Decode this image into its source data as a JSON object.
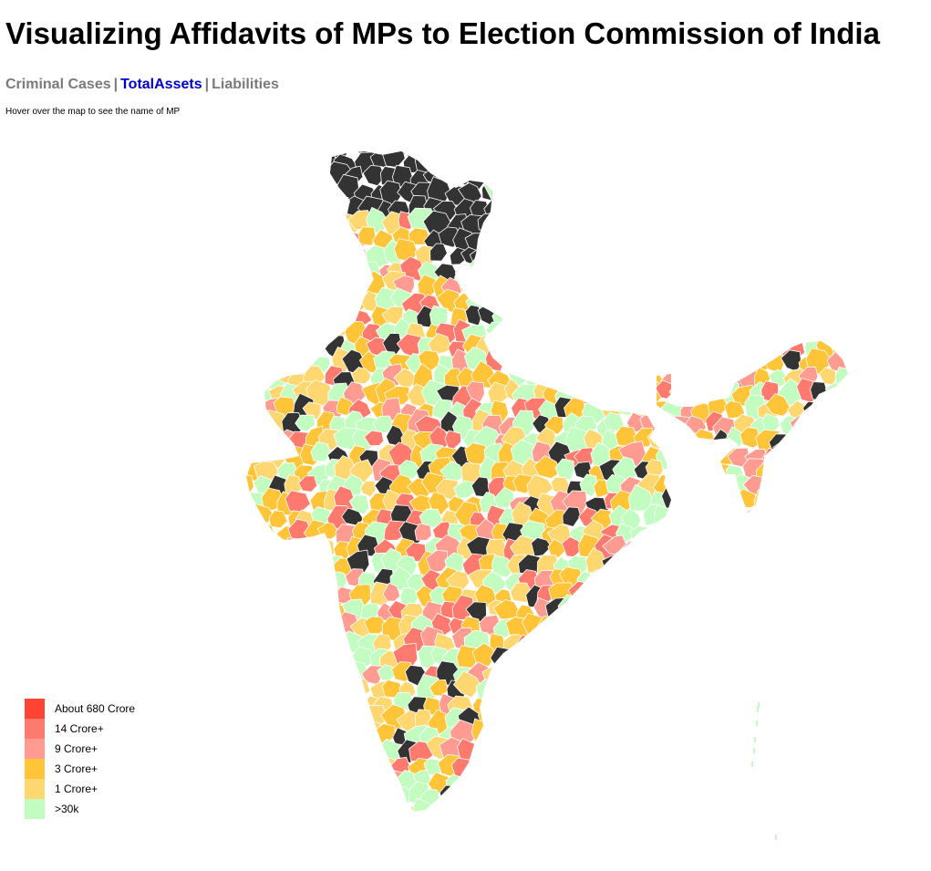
{
  "page": {
    "title": "Visualizing Affidavits of MPs to Election Commission of India",
    "hint": "Hover over the map to see the name of MP"
  },
  "nav": {
    "items": [
      {
        "label": "Criminal Cases",
        "active": false
      },
      {
        "label": "TotalAssets",
        "active": true
      },
      {
        "label": "Liabilities",
        "active": false
      }
    ],
    "separator": "|"
  },
  "legend": {
    "items": [
      {
        "label": "About 680 Crore",
        "color": "#ff4433"
      },
      {
        "label": "14 Crore+",
        "color": "#ff7a6e"
      },
      {
        "label": "9 Crore+",
        "color": "#ff9b90"
      },
      {
        "label": "3 Crore+",
        "color": "#ffc437"
      },
      {
        "label": "1 Crore+",
        "color": "#ffd770"
      },
      {
        "label": ">30k",
        "color": "#c2fcc0"
      }
    ]
  },
  "map": {
    "no_data_color": "#333333",
    "border_color": "#ffffff"
  }
}
